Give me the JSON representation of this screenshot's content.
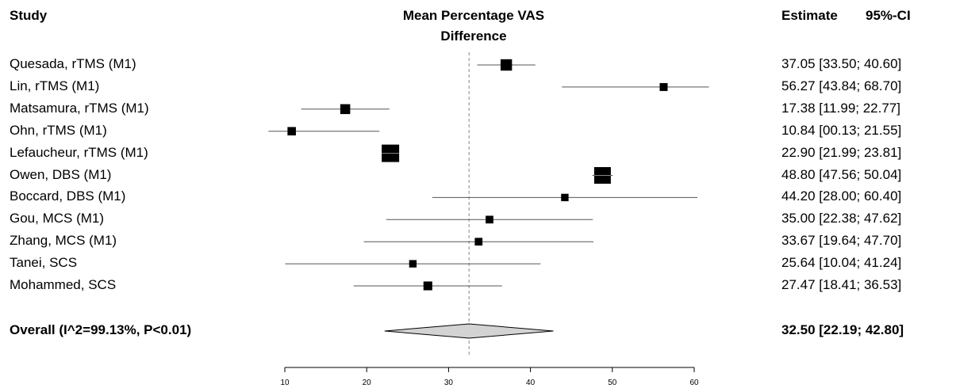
{
  "chart_data": {
    "type": "forest",
    "headers": {
      "study": "Study",
      "effect_line1": "Mean Percentage VAS",
      "effect_line2": "Difference",
      "estimate": "Estimate",
      "ci": "95%-CI"
    },
    "studies": [
      {
        "label": "Quesada, rTMS (M1)",
        "estimate": 37.05,
        "lower": 33.5,
        "upper": 40.6,
        "ci_text": "37.05 [33.50; 40.60]",
        "weight": 3
      },
      {
        "label": "Lin, rTMS (M1)",
        "estimate": 56.27,
        "lower": 43.84,
        "upper": 68.7,
        "ci_text": "56.27 [43.84; 68.70]",
        "weight": 1
      },
      {
        "label": "Matsamura, rTMS (M1)",
        "estimate": 17.38,
        "lower": 11.99,
        "upper": 22.77,
        "ci_text": "17.38 [11.99; 22.77]",
        "weight": 2
      },
      {
        "label": "Ohn, rTMS (M1)",
        "estimate": 10.84,
        "lower": 0.13,
        "upper": 21.55,
        "ci_text": "10.84 [00.13; 21.55]",
        "weight": 1.2
      },
      {
        "label": "Lefaucheur, rTMS (M1)",
        "estimate": 22.9,
        "lower": 21.99,
        "upper": 23.81,
        "ci_text": "22.90 [21.99; 23.81]",
        "weight": 9
      },
      {
        "label": "Owen, DBS (M1)",
        "estimate": 48.8,
        "lower": 47.56,
        "upper": 50.04,
        "ci_text": "48.80 [47.56; 50.04]",
        "weight": 8
      },
      {
        "label": "Boccard, DBS (M1)",
        "estimate": 44.2,
        "lower": 28.0,
        "upper": 60.4,
        "ci_text": "44.20 [28.00; 60.40]",
        "weight": 0.8
      },
      {
        "label": "Gou, MCS (M1)",
        "estimate": 35.0,
        "lower": 22.38,
        "upper": 47.62,
        "ci_text": "35.00 [22.38; 47.62]",
        "weight": 0.9
      },
      {
        "label": "Zhang, MCS (M1)",
        "estimate": 33.67,
        "lower": 19.64,
        "upper": 47.7,
        "ci_text": "33.67 [19.64; 47.70]",
        "weight": 0.9
      },
      {
        "label": "Tanei, SCS",
        "estimate": 25.64,
        "lower": 10.04,
        "upper": 41.24,
        "ci_text": "25.64 [10.04; 41.24]",
        "weight": 0.8
      },
      {
        "label": "Mohammed, SCS",
        "estimate": 27.47,
        "lower": 18.41,
        "upper": 36.53,
        "ci_text": "27.47 [18.41; 36.53]",
        "weight": 1.4
      }
    ],
    "overall": {
      "label": "Overall (I^2=99.13%, P<0.01)",
      "estimate": 32.5,
      "lower": 22.19,
      "upper": 42.8,
      "ci_text": "32.50 [22.19; 42.80]"
    },
    "reference_line": 32.5,
    "xlim": [
      10,
      60
    ],
    "x_ticks": [
      10,
      20,
      30,
      40,
      50,
      60
    ],
    "colors": {
      "marker": "#000000",
      "ci_line": "#555555",
      "diamond_fill": "#d3d3d3",
      "ref_line": "#888888"
    }
  }
}
